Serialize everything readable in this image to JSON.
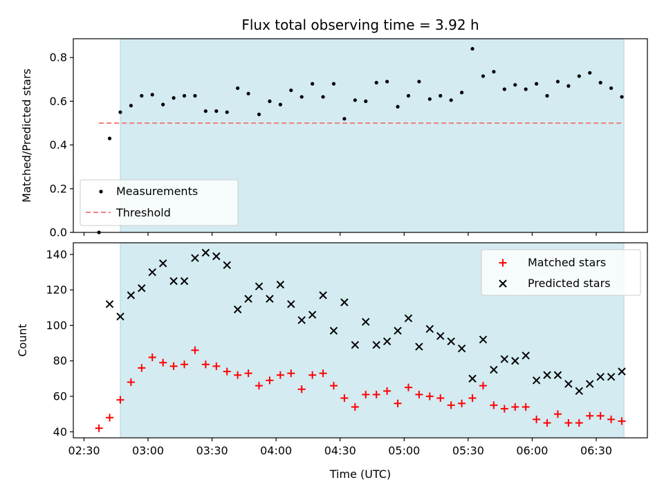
{
  "chart_data": [
    {
      "type": "scatter",
      "title": "Flux total observing time = 3.92 h",
      "xlabel": "",
      "ylabel": "Matched/Predicted stars",
      "ylim": [
        0,
        0.886
      ],
      "yticks": [
        "0.0",
        "0.2",
        "0.4",
        "0.6",
        "0.8"
      ],
      "legend_location": "lower-left",
      "shaded_interval": [
        "02:47",
        "06:43"
      ],
      "shade_color": "#d3ebf1",
      "series": [
        {
          "name": "Measurements",
          "marker": "dot",
          "color": "#000000",
          "x": [
            "02:37",
            "02:42",
            "02:47",
            "02:52",
            "02:57",
            "03:02",
            "03:07",
            "03:12",
            "03:17",
            "03:22",
            "03:27",
            "03:32",
            "03:37",
            "03:42",
            "03:47",
            "03:52",
            "03:57",
            "04:02",
            "04:07",
            "04:12",
            "04:17",
            "04:22",
            "04:27",
            "04:32",
            "04:37",
            "04:42",
            "04:47",
            "04:52",
            "04:57",
            "05:02",
            "05:07",
            "05:12",
            "05:17",
            "05:22",
            "05:27",
            "05:32",
            "05:37",
            "05:42",
            "05:47",
            "05:52",
            "05:57",
            "06:02",
            "06:07",
            "06:12",
            "06:17",
            "06:22",
            "06:27",
            "06:32",
            "06:37",
            "06:42"
          ],
          "values": [
            0.0,
            0.43,
            0.55,
            0.58,
            0.625,
            0.63,
            0.585,
            0.615,
            0.625,
            0.625,
            0.555,
            0.555,
            0.55,
            0.66,
            0.635,
            0.54,
            0.6,
            0.585,
            0.65,
            0.62,
            0.68,
            0.62,
            0.68,
            0.52,
            0.605,
            0.6,
            0.685,
            0.69,
            0.575,
            0.625,
            0.69,
            0.61,
            0.625,
            0.605,
            0.64,
            0.84,
            0.715,
            0.735,
            0.655,
            0.675,
            0.655,
            0.68,
            0.625,
            0.69,
            0.67,
            0.715,
            0.73,
            0.685,
            0.66,
            0.62
          ]
        },
        {
          "name": "Threshold",
          "type": "line",
          "style": "dashed",
          "color": "#f07f7f",
          "x": [
            "02:37",
            "06:42"
          ],
          "values": [
            0.5,
            0.5
          ]
        }
      ]
    },
    {
      "type": "scatter",
      "title": "",
      "xlabel": "Time (UTC)",
      "ylabel": "Count",
      "ylim": [
        36.6,
        146.6
      ],
      "yticks": [
        "40",
        "60",
        "80",
        "100",
        "120",
        "140"
      ],
      "xticks": [
        "02:30",
        "03:00",
        "03:30",
        "04:00",
        "04:30",
        "05:00",
        "05:30",
        "06:00",
        "06:30"
      ],
      "legend_location": "upper-right",
      "shaded_interval": [
        "02:47",
        "06:43"
      ],
      "shade_color": "#d3ebf1",
      "series": [
        {
          "name": "Matched stars",
          "marker": "plus",
          "color": "#ff0000",
          "x": [
            "02:37",
            "02:42",
            "02:47",
            "02:52",
            "02:57",
            "03:02",
            "03:07",
            "03:12",
            "03:17",
            "03:22",
            "03:27",
            "03:32",
            "03:37",
            "03:42",
            "03:47",
            "03:52",
            "03:57",
            "04:02",
            "04:07",
            "04:12",
            "04:17",
            "04:22",
            "04:27",
            "04:32",
            "04:37",
            "04:42",
            "04:47",
            "04:52",
            "04:57",
            "05:02",
            "05:07",
            "05:12",
            "05:17",
            "05:22",
            "05:27",
            "05:32",
            "05:37",
            "05:42",
            "05:47",
            "05:52",
            "05:57",
            "06:02",
            "06:07",
            "06:12",
            "06:17",
            "06:22",
            "06:27",
            "06:32",
            "06:37",
            "06:42"
          ],
          "values": [
            42,
            48,
            58,
            68,
            76,
            82,
            79,
            77,
            78,
            86,
            78,
            77,
            74,
            72,
            73,
            66,
            69,
            72,
            73,
            64,
            72,
            73,
            66,
            59,
            54,
            61,
            61,
            63,
            56,
            65,
            61,
            60,
            59,
            55,
            56,
            59,
            66,
            55,
            53,
            54,
            54,
            47,
            45,
            50,
            45,
            45,
            49,
            49,
            47,
            46
          ]
        },
        {
          "name": "Predicted stars",
          "marker": "x",
          "color": "#000000",
          "x": [
            "02:42",
            "02:47",
            "02:52",
            "02:57",
            "03:02",
            "03:07",
            "03:12",
            "03:17",
            "03:22",
            "03:27",
            "03:32",
            "03:37",
            "03:42",
            "03:47",
            "03:52",
            "03:57",
            "04:02",
            "04:07",
            "04:12",
            "04:17",
            "04:22",
            "04:27",
            "04:32",
            "04:37",
            "04:42",
            "04:47",
            "04:52",
            "04:57",
            "05:02",
            "05:07",
            "05:12",
            "05:17",
            "05:22",
            "05:27",
            "05:32",
            "05:37",
            "05:42",
            "05:47",
            "05:52",
            "05:57",
            "06:02",
            "06:07",
            "06:12",
            "06:17",
            "06:22",
            "06:27",
            "06:32",
            "06:37",
            "06:42"
          ],
          "values": [
            112,
            105,
            117,
            121,
            130,
            135,
            125,
            125,
            138,
            141,
            139,
            134,
            109,
            115,
            122,
            115,
            123,
            112,
            103,
            106,
            117,
            97,
            113,
            89,
            102,
            89,
            91,
            97,
            104,
            88,
            98,
            94,
            91,
            87,
            70,
            92,
            75,
            81,
            80,
            83,
            69,
            72,
            72,
            67,
            63,
            67,
            71,
            71,
            74
          ]
        }
      ]
    }
  ]
}
